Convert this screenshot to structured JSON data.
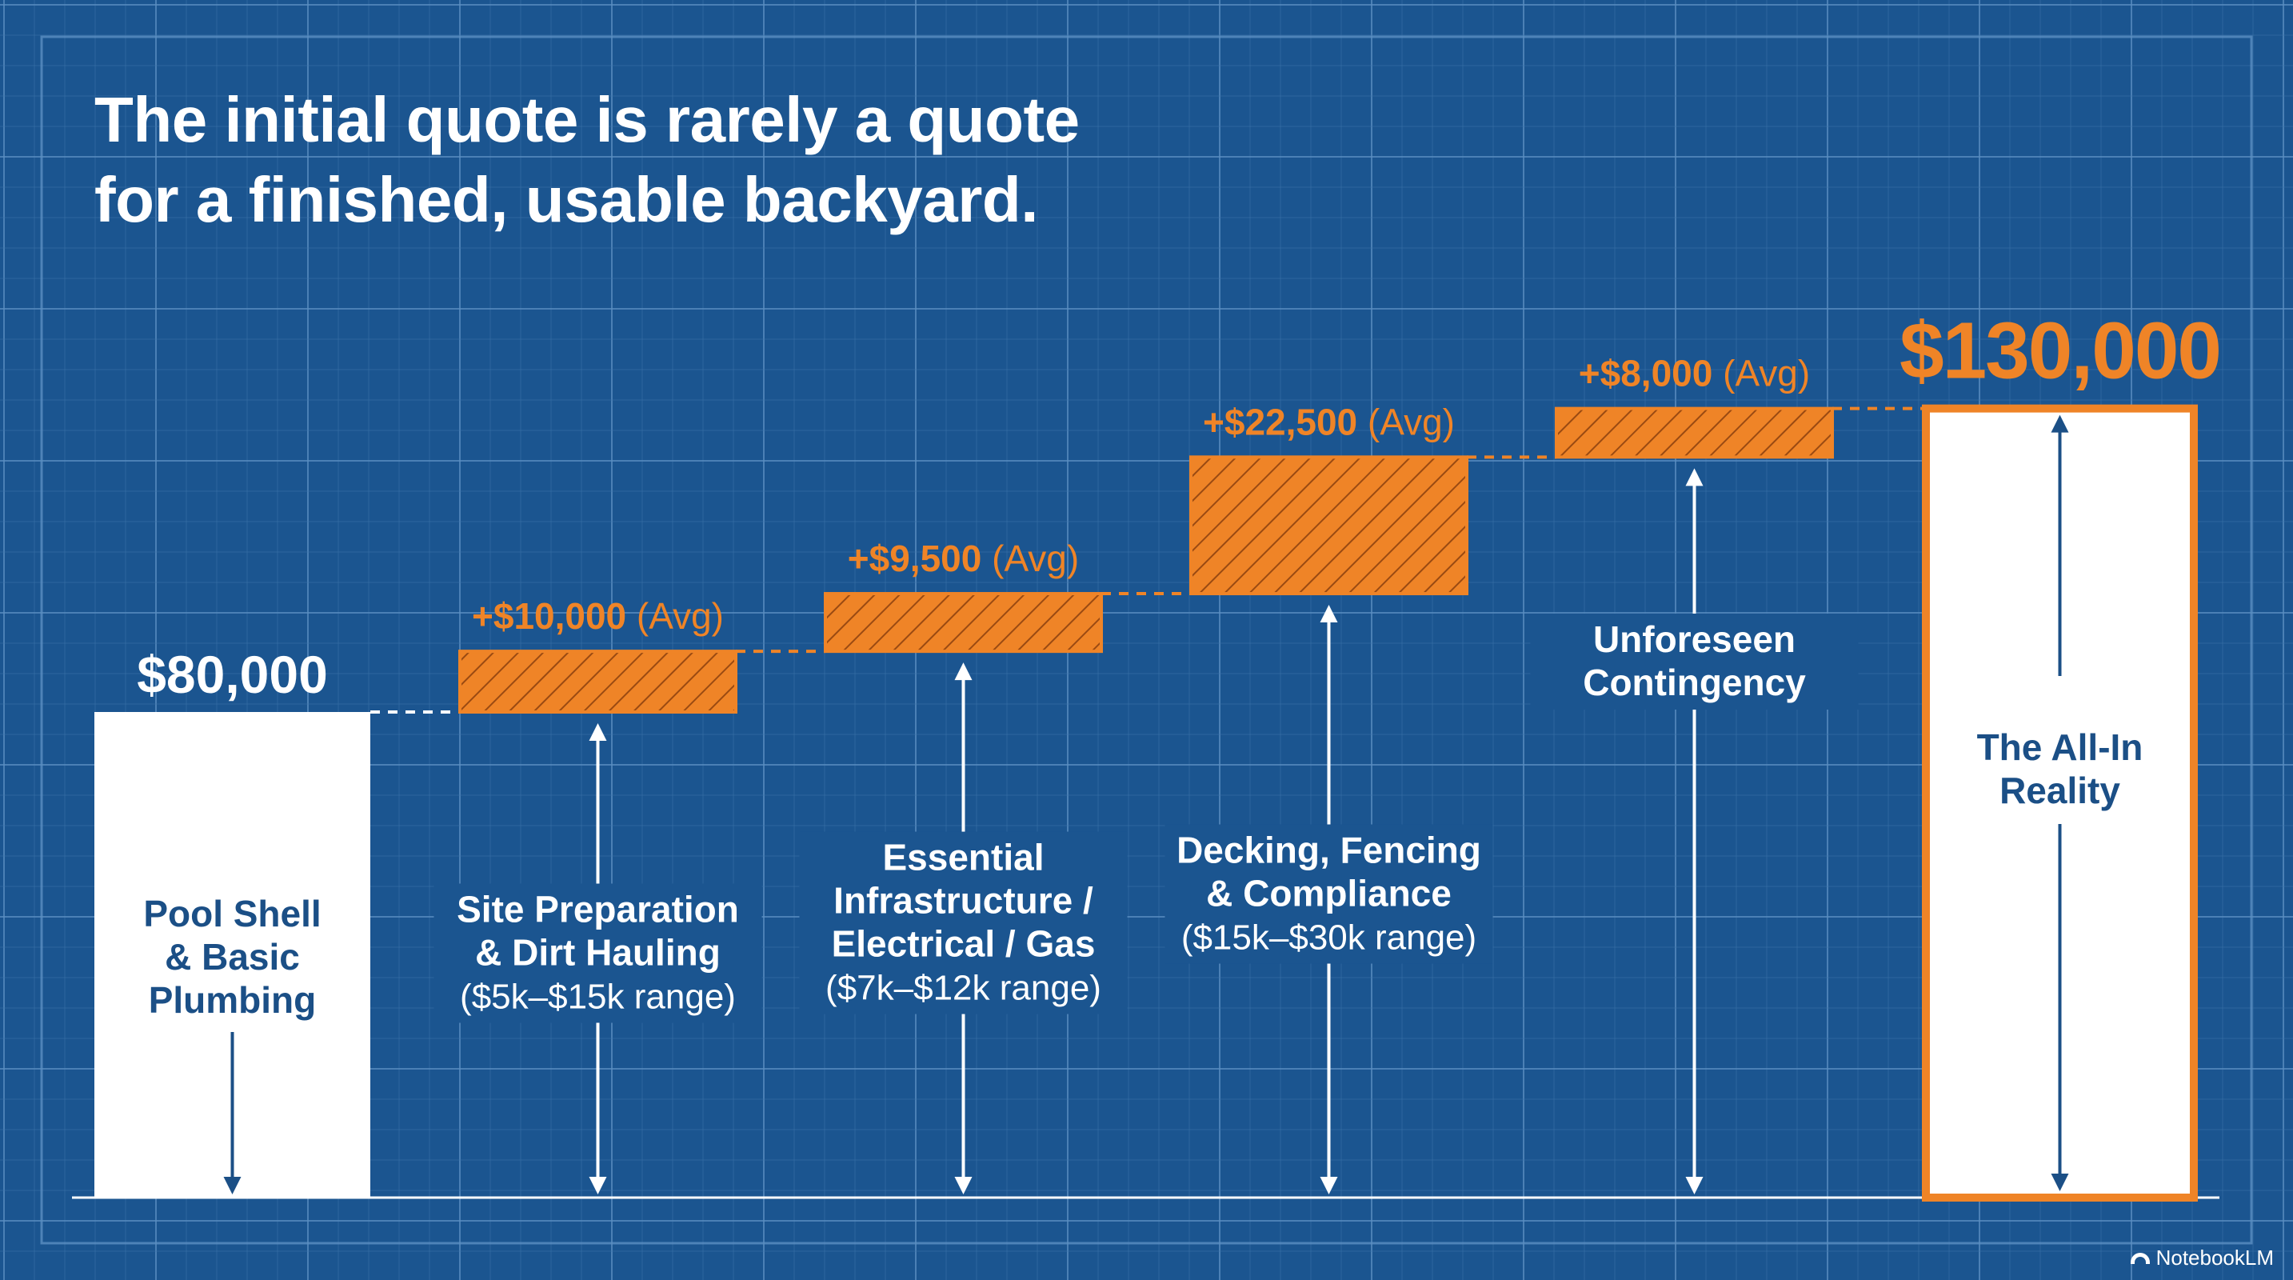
{
  "colors": {
    "background": "#1b5590",
    "grid_minor": "#3a73aa",
    "grid_major": "#5b8fc2",
    "accent": "#ef8427",
    "bar_white": "#ffffff",
    "label_dark": "#1b4f86"
  },
  "title_lines": [
    "The initial quote is rarely a quote",
    "for a finished, usable backyard."
  ],
  "brand": "NotebookLM",
  "chart_data": {
    "type": "bar",
    "subtype": "waterfall",
    "ylim": [
      0,
      130000
    ],
    "grid": true,
    "steps": [
      {
        "kind": "base",
        "value": 80000,
        "value_label": "$80,000",
        "label_lines": [
          "Pool Shell",
          "& Basic",
          "Plumbing"
        ],
        "range_label": ""
      },
      {
        "kind": "increment",
        "value": 10000,
        "value_label": "+$10,000",
        "avg_label": "(Avg)",
        "label_lines": [
          "Site Preparation",
          "& Dirt Hauling"
        ],
        "range_label": "($5k–$15k range)"
      },
      {
        "kind": "increment",
        "value": 9500,
        "value_label": "+$9,500",
        "avg_label": "(Avg)",
        "label_lines": [
          "Essential",
          "Infrastructure /",
          "Electrical / Gas"
        ],
        "range_label": "($7k–$12k range)"
      },
      {
        "kind": "increment",
        "value": 22500,
        "value_label": "+$22,500",
        "avg_label": "(Avg)",
        "label_lines": [
          "Decking, Fencing",
          "& Compliance"
        ],
        "range_label": "($15k–$30k range)"
      },
      {
        "kind": "increment",
        "value": 8000,
        "value_label": "+$8,000",
        "avg_label": "(Avg)",
        "label_lines": [
          "Unforeseen",
          "Contingency"
        ],
        "range_label": ""
      },
      {
        "kind": "total",
        "value": 130000,
        "value_label": "$130,000",
        "label_lines": [
          "The All-In",
          "Reality"
        ],
        "range_label": ""
      }
    ]
  }
}
